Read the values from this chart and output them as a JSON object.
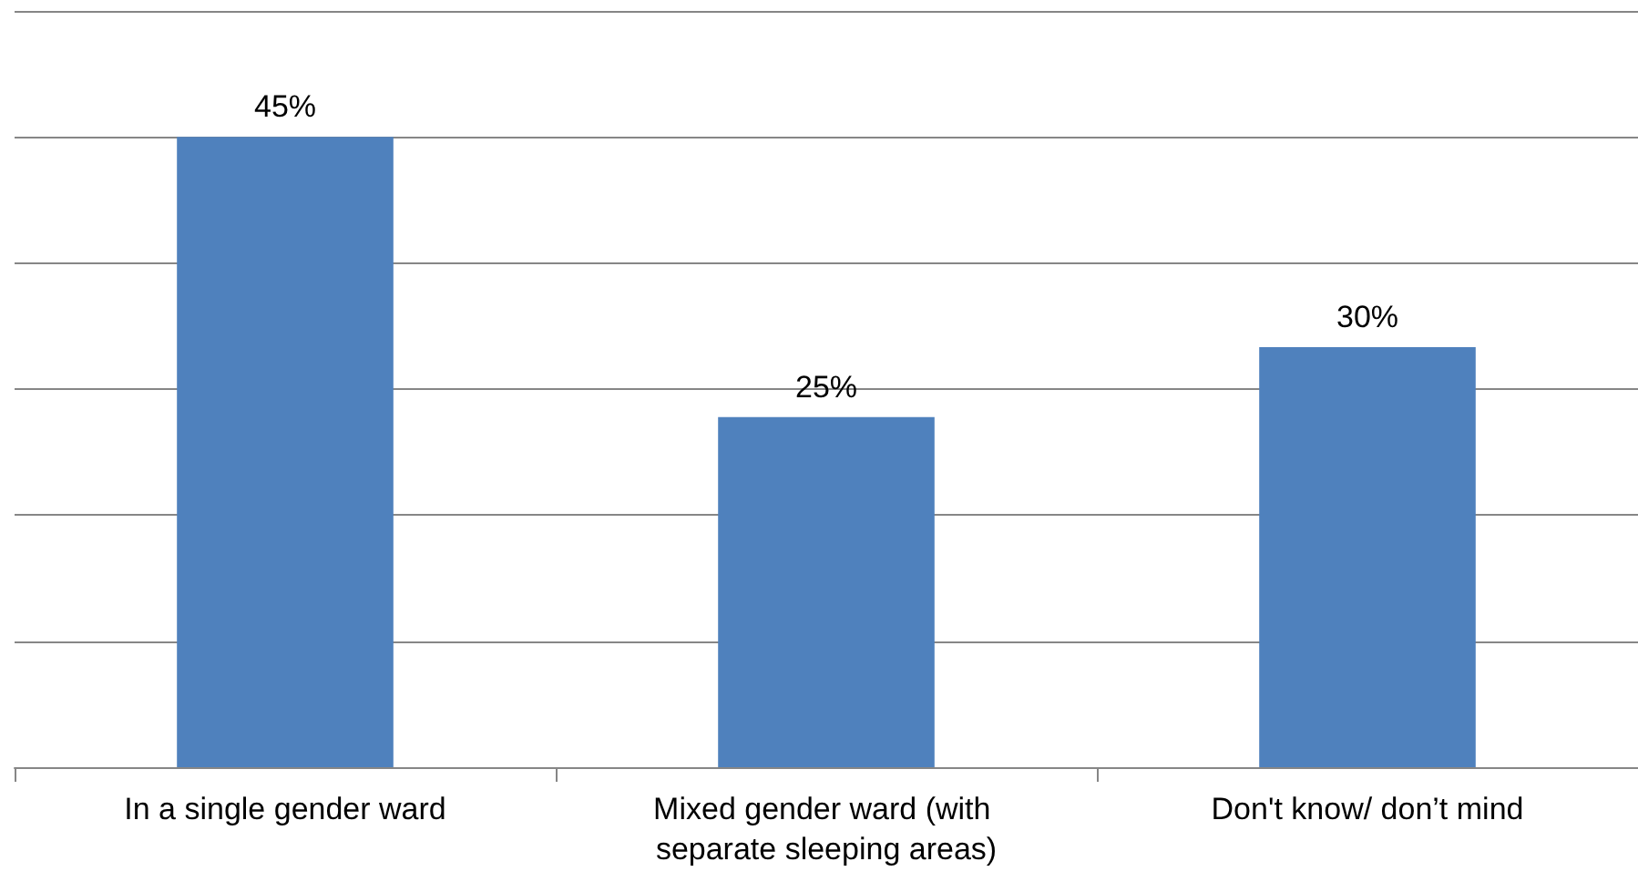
{
  "chart_data": {
    "type": "bar",
    "categories": [
      "In a single gender ward",
      "Mixed gender ward (with separate sleeping areas)",
      "Don't know/ don’t mind"
    ],
    "values": [
      45,
      25,
      30
    ],
    "color": "#4f81bd",
    "value_labels": [
      "45%",
      "25%",
      "30%"
    ],
    "ylim": [
      0,
      54
    ],
    "yticks": [
      {
        "value": 0,
        "label": null
      },
      {
        "value": 9,
        "label": null
      },
      {
        "value": 18,
        "label": null
      },
      {
        "value": 27,
        "label": null
      },
      {
        "value": 36,
        "label": null
      },
      {
        "value": 45,
        "label": null
      },
      {
        "value": 54,
        "label": null
      }
    ],
    "grid": "y",
    "tick_labels": "x"
  }
}
